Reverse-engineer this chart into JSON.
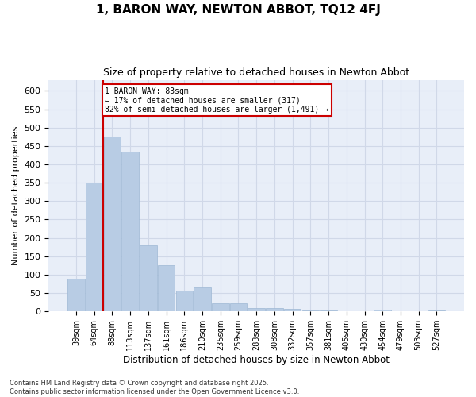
{
  "title_line1": "1, BARON WAY, NEWTON ABBOT, TQ12 4FJ",
  "title_line2": "Size of property relative to detached houses in Newton Abbot",
  "xlabel": "Distribution of detached houses by size in Newton Abbot",
  "ylabel": "Number of detached properties",
  "categories": [
    "39sqm",
    "64sqm",
    "88sqm",
    "113sqm",
    "137sqm",
    "161sqm",
    "186sqm",
    "210sqm",
    "235sqm",
    "259sqm",
    "283sqm",
    "308sqm",
    "332sqm",
    "357sqm",
    "381sqm",
    "405sqm",
    "430sqm",
    "454sqm",
    "479sqm",
    "503sqm",
    "527sqm"
  ],
  "values": [
    90,
    350,
    475,
    435,
    180,
    125,
    57,
    65,
    22,
    22,
    10,
    10,
    6,
    3,
    2,
    1,
    0,
    4,
    0,
    0,
    3
  ],
  "bar_color": "#b8cce4",
  "bar_edge_color": "#9eb8d4",
  "vline_x_index": 2,
  "vline_color": "#cc0000",
  "annotation_text": "1 BARON WAY: 83sqm\n← 17% of detached houses are smaller (317)\n82% of semi-detached houses are larger (1,491) →",
  "annotation_box_color": "#ffffff",
  "annotation_box_edge": "#cc0000",
  "grid_color": "#d0d8e8",
  "background_color": "#e8eef8",
  "ylim": [
    0,
    630
  ],
  "yticks": [
    0,
    50,
    100,
    150,
    200,
    250,
    300,
    350,
    400,
    450,
    500,
    550,
    600
  ],
  "footnote": "Contains HM Land Registry data © Crown copyright and database right 2025.\nContains public sector information licensed under the Open Government Licence v3.0."
}
